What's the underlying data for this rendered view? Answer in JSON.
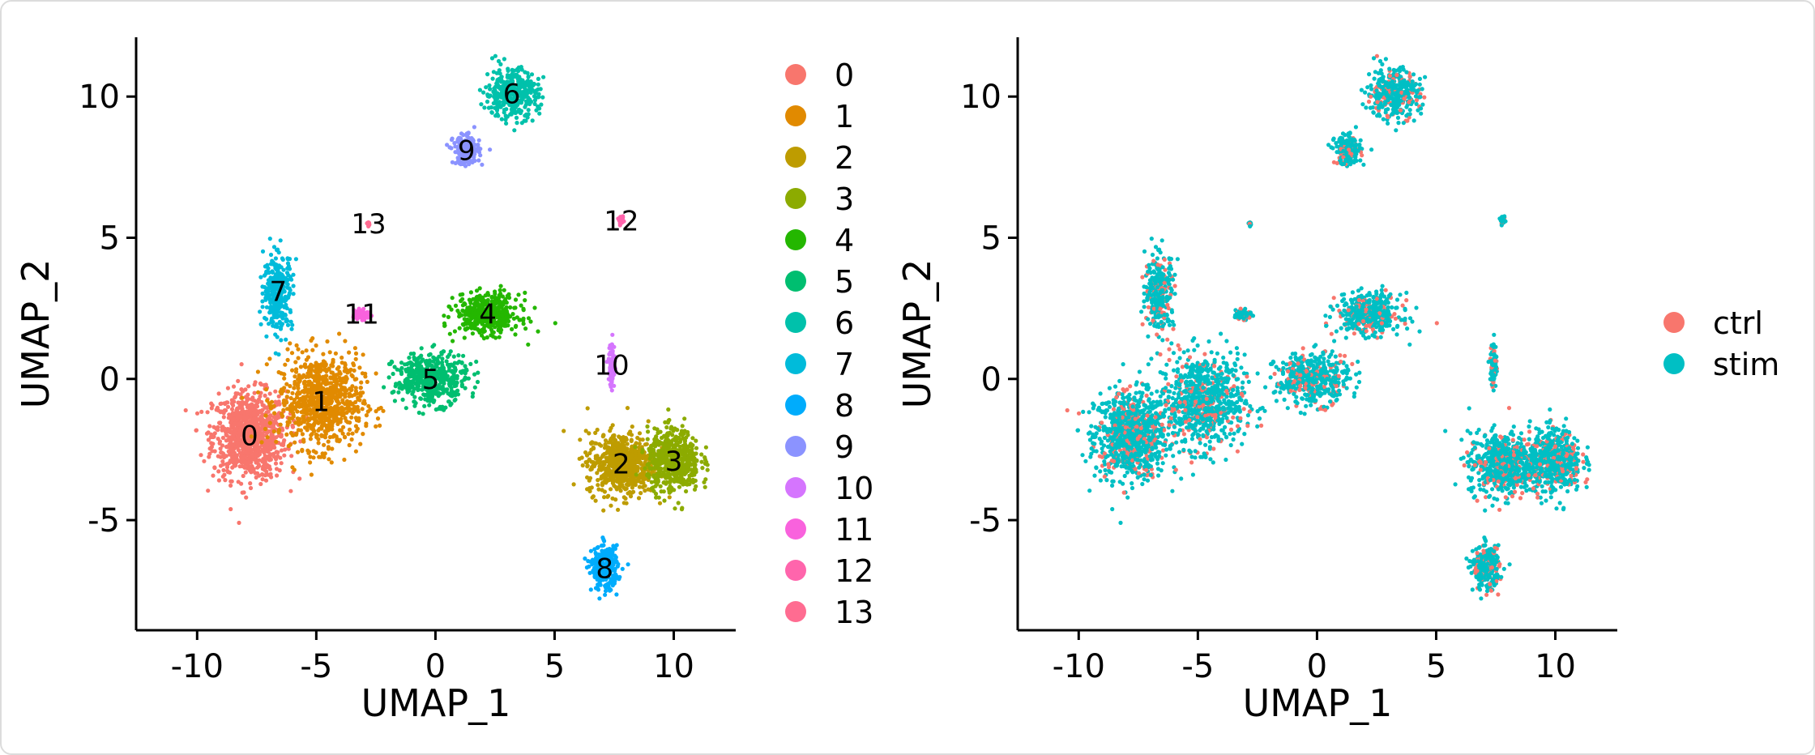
{
  "chart_data": [
    {
      "type": "scatter",
      "xlabel": "UMAP_1",
      "ylabel": "UMAP_2",
      "xlim": [
        -11.2,
        12.6
      ],
      "ylim": [
        -8.9,
        12.1
      ],
      "xticks": [
        -10,
        -5,
        0,
        5,
        10
      ],
      "xtick_labels": [
        "-10",
        "-5",
        "0",
        "5",
        "10"
      ],
      "yticks": [
        -5,
        0,
        5,
        10
      ],
      "ytick_labels": [
        "-5",
        "0",
        "5",
        "10"
      ],
      "grid": false,
      "legend_position": "right",
      "legend": [
        "0",
        "1",
        "2",
        "3",
        "4",
        "5",
        "6",
        "7",
        "8",
        "9",
        "10",
        "11",
        "12",
        "13"
      ],
      "colors": [
        "#F8766D",
        "#E18A00",
        "#BE9C00",
        "#8CAB00",
        "#24B700",
        "#00BE70",
        "#00C1AB",
        "#00BBDA",
        "#00ACFC",
        "#8B93FF",
        "#D575FE",
        "#F962DD",
        "#FF65AC",
        "#FF6C91"
      ],
      "series": [
        {
          "name": "0",
          "center": [
            -7.8,
            -2.0
          ]
        },
        {
          "name": "1",
          "center": [
            -4.8,
            -0.8
          ]
        },
        {
          "name": "2",
          "center": [
            7.8,
            -3.0
          ]
        },
        {
          "name": "3",
          "center": [
            10.0,
            -2.9
          ]
        },
        {
          "name": "4",
          "center": [
            2.2,
            2.3
          ]
        },
        {
          "name": "5",
          "center": [
            -0.2,
            0.0
          ]
        },
        {
          "name": "6",
          "center": [
            3.2,
            10.1
          ]
        },
        {
          "name": "7",
          "center": [
            -6.6,
            3.1
          ]
        },
        {
          "name": "8",
          "center": [
            7.1,
            -6.7
          ]
        },
        {
          "name": "9",
          "center": [
            1.3,
            8.1
          ]
        },
        {
          "name": "10",
          "center": [
            7.4,
            0.5
          ]
        },
        {
          "name": "11",
          "center": [
            -3.1,
            2.3
          ]
        },
        {
          "name": "12",
          "center": [
            7.8,
            5.6
          ]
        },
        {
          "name": "13",
          "center": [
            -2.8,
            5.5
          ]
        }
      ],
      "cluster_labels": [
        "0",
        "1",
        "2",
        "3",
        "4",
        "5",
        "6",
        "7",
        "8",
        "9",
        "10",
        "11",
        "12",
        "13"
      ]
    },
    {
      "type": "scatter",
      "xlabel": "UMAP_1",
      "ylabel": "UMAP_2",
      "xlim": [
        -11.2,
        12.6
      ],
      "ylim": [
        -8.9,
        12.1
      ],
      "xticks": [
        -10,
        -5,
        0,
        5,
        10
      ],
      "xtick_labels": [
        "-10",
        "-5",
        "0",
        "5",
        "10"
      ],
      "yticks": [
        -5,
        0,
        5,
        10
      ],
      "ytick_labels": [
        "-5",
        "0",
        "5",
        "10"
      ],
      "grid": false,
      "legend_position": "right",
      "legend": [
        "ctrl",
        "stim"
      ],
      "colors": [
        "#F8766D",
        "#00BFC4"
      ],
      "series": [
        {
          "name": "ctrl",
          "approx_share": 0.5
        },
        {
          "name": "stim",
          "approx_share": 0.5
        }
      ]
    }
  ]
}
